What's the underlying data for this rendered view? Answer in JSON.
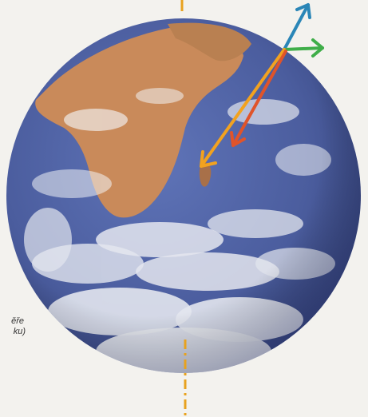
{
  "caption": {
    "line1": "ěře",
    "line2": "ku)"
  },
  "colors": {
    "axis": "#e8a21e",
    "arrow_blue": "#2a86b7",
    "arrow_green": "#3fae49",
    "arrow_orange": "#f2a21f",
    "arrow_red": "#e0542a",
    "ocean": "#4b5d9e",
    "land": "#c98a5a",
    "cloud": "#f4f5f7"
  },
  "icons": [
    "earth-globe",
    "rotation-axis",
    "vector-arrows"
  ]
}
